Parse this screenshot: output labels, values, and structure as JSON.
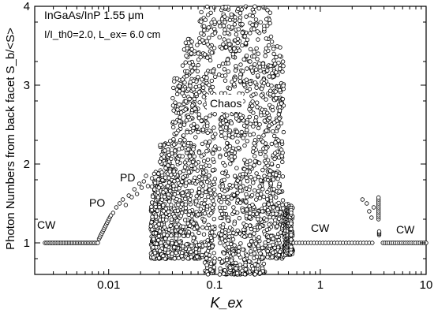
{
  "chart_data": {
    "type": "scatter",
    "title": "",
    "xlabel": "K_ex",
    "ylabel": "Photon Numbers from back facet S_b/<S>",
    "xscale": "log",
    "xlim": [
      0.002,
      10
    ],
    "ylim": [
      0.6,
      4
    ],
    "xticks": [
      0.01,
      0.1,
      1,
      10
    ],
    "xtick_labels": [
      "0.01",
      "0.1",
      "1",
      "10"
    ],
    "yticks": [
      1,
      2,
      3,
      4
    ],
    "ytick_labels": [
      "1",
      "2",
      "3",
      "4"
    ],
    "grid": false,
    "marker": "open-circle",
    "annotations": {
      "device": "InGaAs/InP 1.55 μm",
      "params": "I/I_th0=2.0, L_ex= 6.0 cm",
      "cw_left": "CW",
      "po": "PO",
      "pd": "PD",
      "chaos": "Chaos",
      "cw_mid": "CW",
      "cw_right": "CW"
    },
    "regions": [
      {
        "label": "CW",
        "x_range": [
          0.0025,
          0.0079
        ],
        "y": 1.0
      },
      {
        "label": "PO",
        "x_range": [
          0.008,
          0.0105
        ],
        "y_range": [
          1.05,
          1.4
        ]
      },
      {
        "label": "PD",
        "x_range": [
          0.011,
          0.025
        ],
        "y_range": [
          1.3,
          2.0
        ]
      },
      {
        "label": "Chaos",
        "x_range": [
          0.025,
          0.55
        ],
        "y_range": [
          0.6,
          4.0
        ]
      },
      {
        "label": "CW",
        "x_range": [
          0.55,
          3.2
        ],
        "y": 1.0
      },
      {
        "label": "CW",
        "x_range": [
          3.9,
          10
        ],
        "y": 1.0
      }
    ],
    "sample_points": [
      [
        0.0025,
        1.0
      ],
      [
        0.003,
        1.0
      ],
      [
        0.004,
        1.0
      ],
      [
        0.005,
        1.0
      ],
      [
        0.006,
        1.0
      ],
      [
        0.007,
        1.0
      ],
      [
        0.0078,
        1.0
      ],
      [
        0.0082,
        1.08
      ],
      [
        0.0086,
        1.15
      ],
      [
        0.009,
        1.22
      ],
      [
        0.0095,
        1.3
      ],
      [
        0.0102,
        1.36
      ],
      [
        0.012,
        1.45
      ],
      [
        0.014,
        1.55
      ],
      [
        0.016,
        1.6
      ],
      [
        0.018,
        1.7
      ],
      [
        0.02,
        1.65
      ],
      [
        0.022,
        1.8
      ],
      [
        0.6,
        1.0
      ],
      [
        1.0,
        1.0
      ],
      [
        2.0,
        1.0
      ],
      [
        3.0,
        1.0
      ],
      [
        4.0,
        1.0
      ],
      [
        6.0,
        1.0
      ],
      [
        10.0,
        1.0
      ],
      [
        2.6,
        1.5
      ],
      [
        2.8,
        1.4
      ],
      [
        3.0,
        1.3
      ],
      [
        3.6,
        1.6
      ],
      [
        3.6,
        1.12
      ]
    ]
  }
}
